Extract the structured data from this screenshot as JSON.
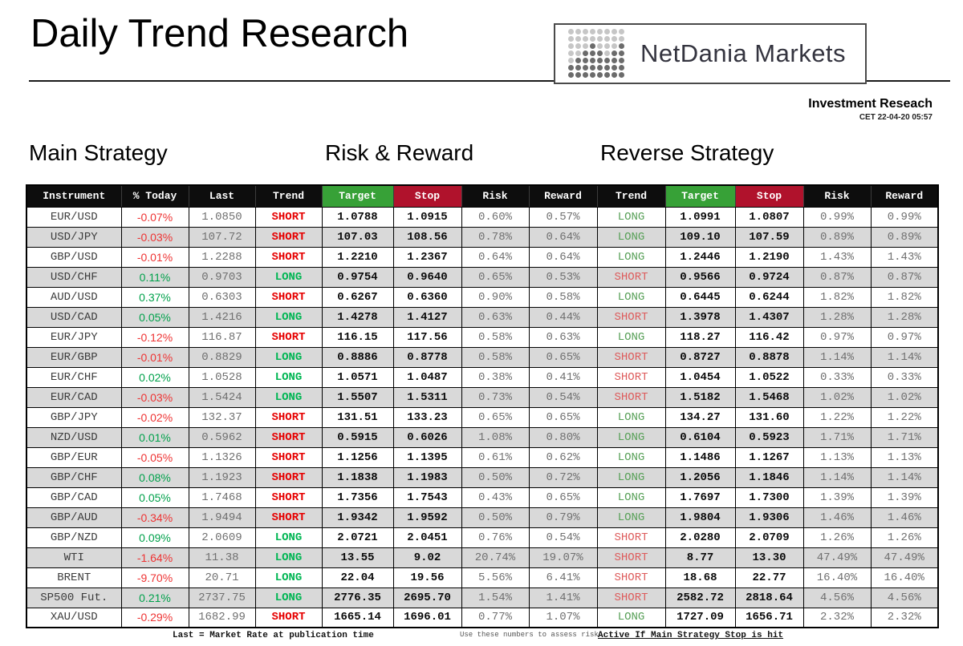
{
  "title": "Daily Trend Research",
  "logo": {
    "text": "NetDania Markets",
    "dot_pattern": [
      "00000000",
      "00000000",
      "00020002",
      "00222022",
      "02222222",
      "22222222",
      "22222222"
    ]
  },
  "subheader": {
    "line1": "Investment Reseach",
    "line2": "CET 22-04-20 05:57"
  },
  "sections": {
    "main": "Main Strategy",
    "risk": "Risk & Reward",
    "reverse": "Reverse Strategy"
  },
  "colors": {
    "header_bg": "#0d0d0d",
    "target_header_green": "#37a137",
    "stop_header_red": "#b0122c",
    "alt_row_gray": "#d9d9d9",
    "trend_long_green": "#00b653",
    "trend_short_red": "#e60000",
    "pct_up_green": "#00a14b",
    "pct_down_red": "#ee3333",
    "muted_text_gray": "#707070"
  },
  "table": {
    "columns": [
      "Instrument",
      "% Today",
      "Last",
      "Trend",
      "Target",
      "Stop",
      "Risk",
      "Reward",
      "Trend",
      "Target",
      "Stop",
      "Risk",
      "Reward"
    ],
    "rows": [
      {
        "instrument": "EUR/USD",
        "pct": "-0.07%",
        "last": "1.0850",
        "trend": "SHORT",
        "target": "1.0788",
        "stop": "1.0915",
        "risk": "0.60%",
        "reward": "0.57%",
        "r_trend": "LONG",
        "r_target": "1.0991",
        "r_stop": "1.0807",
        "r_risk": "0.99%",
        "r_reward": "0.99%"
      },
      {
        "instrument": "USD/JPY",
        "pct": "-0.03%",
        "last": "107.72",
        "trend": "SHORT",
        "target": "107.03",
        "stop": "108.56",
        "risk": "0.78%",
        "reward": "0.64%",
        "r_trend": "LONG",
        "r_target": "109.10",
        "r_stop": "107.59",
        "r_risk": "0.89%",
        "r_reward": "0.89%"
      },
      {
        "instrument": "GBP/USD",
        "pct": "-0.01%",
        "last": "1.2288",
        "trend": "SHORT",
        "target": "1.2210",
        "stop": "1.2367",
        "risk": "0.64%",
        "reward": "0.64%",
        "r_trend": "LONG",
        "r_target": "1.2446",
        "r_stop": "1.2190",
        "r_risk": "1.43%",
        "r_reward": "1.43%"
      },
      {
        "instrument": "USD/CHF",
        "pct": "0.11%",
        "last": "0.9703",
        "trend": "LONG",
        "target": "0.9754",
        "stop": "0.9640",
        "risk": "0.65%",
        "reward": "0.53%",
        "r_trend": "SHORT",
        "r_target": "0.9566",
        "r_stop": "0.9724",
        "r_risk": "0.87%",
        "r_reward": "0.87%"
      },
      {
        "instrument": "AUD/USD",
        "pct": "0.37%",
        "last": "0.6303",
        "trend": "SHORT",
        "target": "0.6267",
        "stop": "0.6360",
        "risk": "0.90%",
        "reward": "0.58%",
        "r_trend": "LONG",
        "r_target": "0.6445",
        "r_stop": "0.6244",
        "r_risk": "1.82%",
        "r_reward": "1.82%"
      },
      {
        "instrument": "USD/CAD",
        "pct": "0.05%",
        "last": "1.4216",
        "trend": "LONG",
        "target": "1.4278",
        "stop": "1.4127",
        "risk": "0.63%",
        "reward": "0.44%",
        "r_trend": "SHORT",
        "r_target": "1.3978",
        "r_stop": "1.4307",
        "r_risk": "1.28%",
        "r_reward": "1.28%"
      },
      {
        "instrument": "EUR/JPY",
        "pct": "-0.12%",
        "last": "116.87",
        "trend": "SHORT",
        "target": "116.15",
        "stop": "117.56",
        "risk": "0.58%",
        "reward": "0.63%",
        "r_trend": "LONG",
        "r_target": "118.27",
        "r_stop": "116.42",
        "r_risk": "0.97%",
        "r_reward": "0.97%"
      },
      {
        "instrument": "EUR/GBP",
        "pct": "-0.01%",
        "last": "0.8829",
        "trend": "LONG",
        "target": "0.8886",
        "stop": "0.8778",
        "risk": "0.58%",
        "reward": "0.65%",
        "r_trend": "SHORT",
        "r_target": "0.8727",
        "r_stop": "0.8878",
        "r_risk": "1.14%",
        "r_reward": "1.14%"
      },
      {
        "instrument": "EUR/CHF",
        "pct": "0.02%",
        "last": "1.0528",
        "trend": "LONG",
        "target": "1.0571",
        "stop": "1.0487",
        "risk": "0.38%",
        "reward": "0.41%",
        "r_trend": "SHORT",
        "r_target": "1.0454",
        "r_stop": "1.0522",
        "r_risk": "0.33%",
        "r_reward": "0.33%"
      },
      {
        "instrument": "EUR/CAD",
        "pct": "-0.03%",
        "last": "1.5424",
        "trend": "LONG",
        "target": "1.5507",
        "stop": "1.5311",
        "risk": "0.73%",
        "reward": "0.54%",
        "r_trend": "SHORT",
        "r_target": "1.5182",
        "r_stop": "1.5468",
        "r_risk": "1.02%",
        "r_reward": "1.02%"
      },
      {
        "instrument": "GBP/JPY",
        "pct": "-0.02%",
        "last": "132.37",
        "trend": "SHORT",
        "target": "131.51",
        "stop": "133.23",
        "risk": "0.65%",
        "reward": "0.65%",
        "r_trend": "LONG",
        "r_target": "134.27",
        "r_stop": "131.60",
        "r_risk": "1.22%",
        "r_reward": "1.22%"
      },
      {
        "instrument": "NZD/USD",
        "pct": "0.01%",
        "last": "0.5962",
        "trend": "SHORT",
        "target": "0.5915",
        "stop": "0.6026",
        "risk": "1.08%",
        "reward": "0.80%",
        "r_trend": "LONG",
        "r_target": "0.6104",
        "r_stop": "0.5923",
        "r_risk": "1.71%",
        "r_reward": "1.71%"
      },
      {
        "instrument": "GBP/EUR",
        "pct": "-0.05%",
        "last": "1.1326",
        "trend": "SHORT",
        "target": "1.1256",
        "stop": "1.1395",
        "risk": "0.61%",
        "reward": "0.62%",
        "r_trend": "LONG",
        "r_target": "1.1486",
        "r_stop": "1.1267",
        "r_risk": "1.13%",
        "r_reward": "1.13%"
      },
      {
        "instrument": "GBP/CHF",
        "pct": "0.08%",
        "last": "1.1923",
        "trend": "SHORT",
        "target": "1.1838",
        "stop": "1.1983",
        "risk": "0.50%",
        "reward": "0.72%",
        "r_trend": "LONG",
        "r_target": "1.2056",
        "r_stop": "1.1846",
        "r_risk": "1.14%",
        "r_reward": "1.14%"
      },
      {
        "instrument": "GBP/CAD",
        "pct": "0.05%",
        "last": "1.7468",
        "trend": "SHORT",
        "target": "1.7356",
        "stop": "1.7543",
        "risk": "0.43%",
        "reward": "0.65%",
        "r_trend": "LONG",
        "r_target": "1.7697",
        "r_stop": "1.7300",
        "r_risk": "1.39%",
        "r_reward": "1.39%"
      },
      {
        "instrument": "GBP/AUD",
        "pct": "-0.34%",
        "last": "1.9494",
        "trend": "SHORT",
        "target": "1.9342",
        "stop": "1.9592",
        "risk": "0.50%",
        "reward": "0.79%",
        "r_trend": "LONG",
        "r_target": "1.9804",
        "r_stop": "1.9306",
        "r_risk": "1.46%",
        "r_reward": "1.46%"
      },
      {
        "instrument": "GBP/NZD",
        "pct": "0.09%",
        "last": "2.0609",
        "trend": "LONG",
        "target": "2.0721",
        "stop": "2.0451",
        "risk": "0.76%",
        "reward": "0.54%",
        "r_trend": "SHORT",
        "r_target": "2.0280",
        "r_stop": "2.0709",
        "r_risk": "1.26%",
        "r_reward": "1.26%"
      },
      {
        "instrument": "WTI",
        "pct": "-1.64%",
        "last": "11.38",
        "trend": "LONG",
        "target": "13.55",
        "stop": "9.02",
        "risk": "20.74%",
        "reward": "19.07%",
        "r_trend": "SHORT",
        "r_target": "8.77",
        "r_stop": "13.30",
        "r_risk": "47.49%",
        "r_reward": "47.49%"
      },
      {
        "instrument": "BRENT",
        "pct": "-9.70%",
        "last": "20.71",
        "trend": "LONG",
        "target": "22.04",
        "stop": "19.56",
        "risk": "5.56%",
        "reward": "6.41%",
        "r_trend": "SHORT",
        "r_target": "18.68",
        "r_stop": "22.77",
        "r_risk": "16.40%",
        "r_reward": "16.40%"
      },
      {
        "instrument": "SP500 Fut.",
        "pct": "0.21%",
        "last": "2737.75",
        "trend": "LONG",
        "target": "2776.35",
        "stop": "2695.70",
        "risk": "1.54%",
        "reward": "1.41%",
        "r_trend": "SHORT",
        "r_target": "2582.72",
        "r_stop": "2818.64",
        "r_risk": "4.56%",
        "r_reward": "4.56%"
      },
      {
        "instrument": "XAU/USD",
        "pct": "-0.29%",
        "last": "1682.99",
        "trend": "SHORT",
        "target": "1665.14",
        "stop": "1696.01",
        "risk": "0.77%",
        "reward": "1.07%",
        "r_trend": "LONG",
        "r_target": "1727.09",
        "r_stop": "1656.71",
        "r_risk": "2.32%",
        "r_reward": "2.32%"
      }
    ]
  },
  "footnotes": {
    "left": "Last = Market Rate at publication time",
    "mid": "Use these numbers to assess risk",
    "right": "Active If Main Strategy Stop is hit"
  }
}
